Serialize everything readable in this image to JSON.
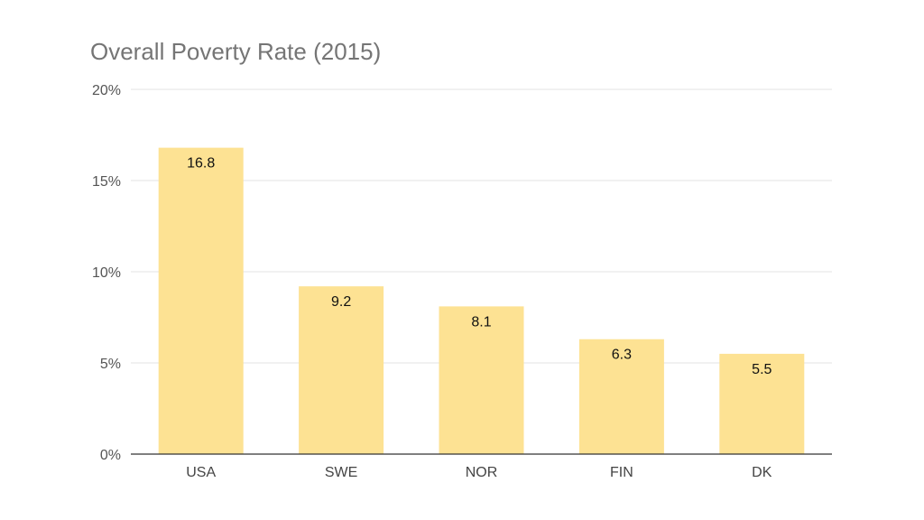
{
  "chart_data": {
    "type": "bar",
    "title": "Overall Poverty Rate (2015)",
    "xlabel": "",
    "ylabel": "",
    "categories": [
      "USA",
      "SWE",
      "NOR",
      "FIN",
      "DK"
    ],
    "values": [
      16.8,
      9.2,
      8.1,
      6.3,
      5.5
    ],
    "data_labels": [
      "16.8",
      "9.2",
      "8.1",
      "6.3",
      "5.5"
    ],
    "ylim": [
      0,
      20
    ],
    "yticks": [
      0,
      5,
      10,
      15,
      20
    ],
    "ytick_labels": [
      "0%",
      "5%",
      "10%",
      "15%",
      "20%"
    ],
    "grid": true,
    "legend": "none",
    "colors": {
      "bar": "#fde293",
      "grid": "#e3e3e3",
      "axis": "#333333",
      "title": "#757575"
    }
  }
}
